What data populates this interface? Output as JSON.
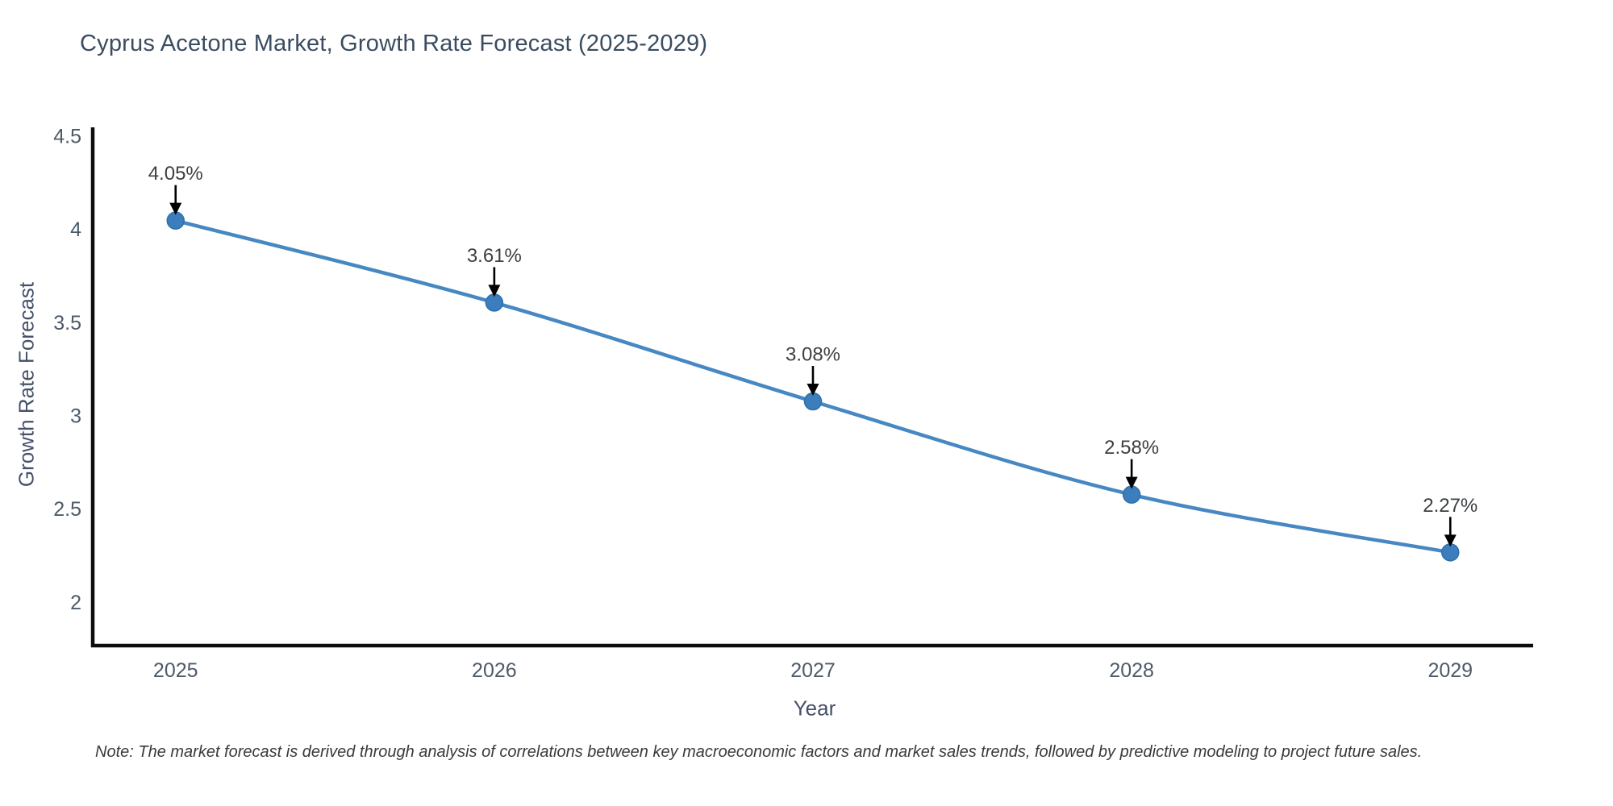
{
  "title": "Cyprus Acetone Market, Growth Rate Forecast (2025-2029)",
  "note": "Note: The market forecast is derived through analysis of correlations between key macroeconomic factors and market sales trends, followed by predictive modeling to project future sales.",
  "chart_data": {
    "type": "line",
    "title": "Cyprus Acetone Market, Growth Rate Forecast (2025-2029)",
    "xlabel": "Year",
    "ylabel": "Growth Rate Forecast",
    "x": [
      2025,
      2026,
      2027,
      2028,
      2029
    ],
    "values": [
      4.05,
      3.61,
      3.08,
      2.58,
      2.27
    ],
    "point_labels": [
      "4.05%",
      "3.61%",
      "3.08%",
      "2.58%",
      "2.27%"
    ],
    "xticks": [
      2025,
      2026,
      2027,
      2028,
      2029
    ],
    "xtick_labels": [
      "2025",
      "2026",
      "2027",
      "2028",
      "2029"
    ],
    "yticks": [
      4.5,
      4,
      3.5,
      3,
      2.5,
      2
    ],
    "ytick_labels": [
      "4.5",
      "4",
      "3.5",
      "3",
      "2.5",
      "2"
    ],
    "xlim": [
      2024.74,
      2029.26
    ],
    "ylim": [
      1.77,
      4.55
    ],
    "grid": false,
    "legend_position": "none",
    "line_shape": "spline",
    "annotation_style": "label-with-down-arrow",
    "colors": {
      "line": "#4788c3",
      "marker_fill": "#3c7ebd",
      "marker_edge": "#2f6fa9",
      "axis_line": "#0d0d0d",
      "tick_text": "#4d5a68",
      "title_text": "#3a4c60",
      "axis_title_text": "#45506a",
      "point_label_text": "#3c4043",
      "arrow": "#000000",
      "note_text": "#3a3a3a",
      "background": "#ffffff"
    }
  }
}
